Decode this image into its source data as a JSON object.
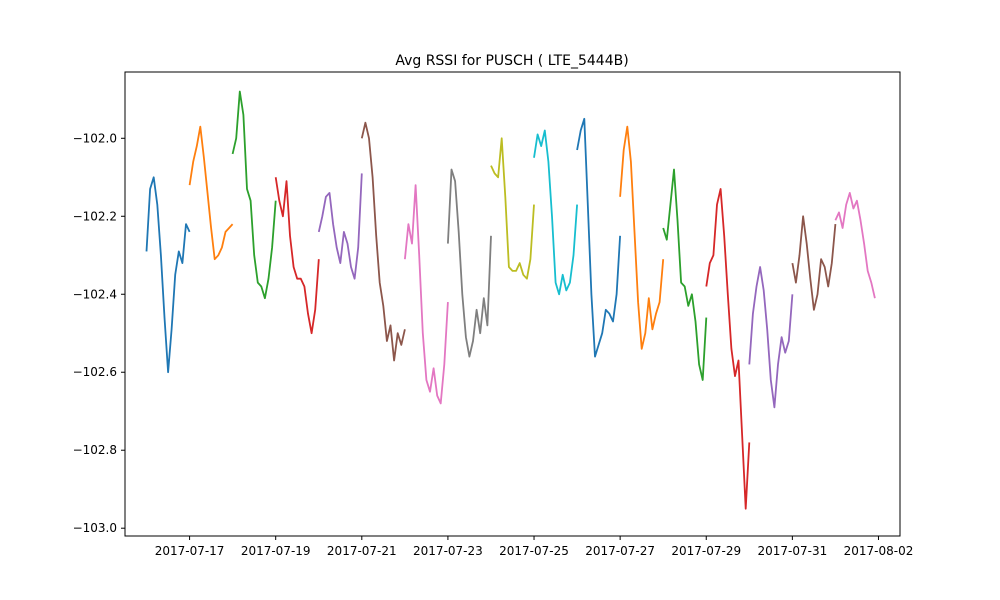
{
  "chart_data": {
    "type": "line",
    "title": "Avg RSSI for PUSCH ( LTE_5444B)",
    "xlabel": "",
    "ylabel": "",
    "x_axis": {
      "type": "date",
      "range": [
        "2017-07-15T12:00",
        "2017-08-02T12:00"
      ],
      "ticks": [
        "2017-07-17",
        "2017-07-19",
        "2017-07-21",
        "2017-07-23",
        "2017-07-25",
        "2017-07-27",
        "2017-07-29",
        "2017-07-31",
        "2017-08-02"
      ]
    },
    "y_axis": {
      "range": [
        -103.02,
        -101.83
      ],
      "ticks": [
        -103.0,
        -102.8,
        -102.6,
        -102.4,
        -102.2,
        -102.0
      ],
      "tick_labels": [
        "−103.0",
        "−102.8",
        "−102.6",
        "−102.4",
        "−102.2",
        "−102.0"
      ]
    },
    "grid": false,
    "legend": "none",
    "colors": [
      "#1f77b4",
      "#ff7f0e",
      "#2ca02c",
      "#d62728",
      "#9467bd",
      "#8c564b",
      "#e377c2",
      "#7f7f7f",
      "#bcbd22",
      "#17becf"
    ],
    "series": [
      {
        "x": [
          "2017-07-16T00:00",
          "2017-07-16T02:00",
          "2017-07-16T04:00",
          "2017-07-16T06:00",
          "2017-07-16T08:00",
          "2017-07-16T10:00",
          "2017-07-16T12:00",
          "2017-07-16T14:00",
          "2017-07-16T16:00",
          "2017-07-16T18:00",
          "2017-07-16T20:00",
          "2017-07-16T22:00",
          "2017-07-17T00:00"
        ],
        "y": [
          -102.29,
          -102.13,
          -102.1,
          -102.17,
          -102.3,
          -102.46,
          -102.6,
          -102.49,
          -102.35,
          -102.29,
          -102.32,
          -102.22,
          -102.24
        ]
      },
      {
        "x": [
          "2017-07-17T00:00",
          "2017-07-17T02:00",
          "2017-07-17T04:00",
          "2017-07-17T06:00",
          "2017-07-17T08:00",
          "2017-07-17T10:00",
          "2017-07-17T12:00",
          "2017-07-17T14:00",
          "2017-07-17T16:00",
          "2017-07-17T18:00",
          "2017-07-17T20:00",
          "2017-07-17T22:00",
          "2017-07-18T00:00"
        ],
        "y": [
          -102.12,
          -102.06,
          -102.02,
          -101.97,
          -102.05,
          -102.14,
          -102.23,
          -102.31,
          -102.3,
          -102.28,
          -102.24,
          -102.23,
          -102.22
        ]
      },
      {
        "x": [
          "2017-07-18T00:00",
          "2017-07-18T02:00",
          "2017-07-18T04:00",
          "2017-07-18T06:00",
          "2017-07-18T08:00",
          "2017-07-18T10:00",
          "2017-07-18T12:00",
          "2017-07-18T14:00",
          "2017-07-18T16:00",
          "2017-07-18T18:00",
          "2017-07-18T20:00",
          "2017-07-18T22:00",
          "2017-07-19T00:00"
        ],
        "y": [
          -102.04,
          -102.0,
          -101.88,
          -101.94,
          -102.13,
          -102.16,
          -102.3,
          -102.37,
          -102.38,
          -102.41,
          -102.36,
          -102.28,
          -102.16
        ]
      },
      {
        "x": [
          "2017-07-19T00:00",
          "2017-07-19T02:00",
          "2017-07-19T04:00",
          "2017-07-19T06:00",
          "2017-07-19T08:00",
          "2017-07-19T10:00",
          "2017-07-19T12:00",
          "2017-07-19T14:00",
          "2017-07-19T16:00",
          "2017-07-19T18:00",
          "2017-07-19T20:00",
          "2017-07-19T22:00",
          "2017-07-20T00:00"
        ],
        "y": [
          -102.1,
          -102.16,
          -102.2,
          -102.11,
          -102.25,
          -102.33,
          -102.36,
          -102.36,
          -102.38,
          -102.45,
          -102.5,
          -102.44,
          -102.31
        ]
      },
      {
        "x": [
          "2017-07-20T00:00",
          "2017-07-20T02:00",
          "2017-07-20T04:00",
          "2017-07-20T06:00",
          "2017-07-20T08:00",
          "2017-07-20T10:00",
          "2017-07-20T12:00",
          "2017-07-20T14:00",
          "2017-07-20T16:00",
          "2017-07-20T18:00",
          "2017-07-20T20:00",
          "2017-07-20T22:00",
          "2017-07-21T00:00"
        ],
        "y": [
          -102.24,
          -102.2,
          -102.15,
          -102.14,
          -102.22,
          -102.28,
          -102.32,
          -102.24,
          -102.27,
          -102.33,
          -102.36,
          -102.28,
          -102.09
        ]
      },
      {
        "x": [
          "2017-07-21T00:00",
          "2017-07-21T02:00",
          "2017-07-21T04:00",
          "2017-07-21T06:00",
          "2017-07-21T08:00",
          "2017-07-21T10:00",
          "2017-07-21T12:00",
          "2017-07-21T14:00",
          "2017-07-21T16:00",
          "2017-07-21T18:00",
          "2017-07-21T20:00",
          "2017-07-21T22:00",
          "2017-07-22T00:00"
        ],
        "y": [
          -102.0,
          -101.96,
          -102.0,
          -102.1,
          -102.25,
          -102.37,
          -102.43,
          -102.52,
          -102.48,
          -102.57,
          -102.5,
          -102.53,
          -102.49
        ]
      },
      {
        "x": [
          "2017-07-22T00:00",
          "2017-07-22T02:00",
          "2017-07-22T04:00",
          "2017-07-22T06:00",
          "2017-07-22T08:00",
          "2017-07-22T10:00",
          "2017-07-22T12:00",
          "2017-07-22T14:00",
          "2017-07-22T16:00",
          "2017-07-22T18:00",
          "2017-07-22T20:00",
          "2017-07-22T22:00",
          "2017-07-23T00:00"
        ],
        "y": [
          -102.31,
          -102.22,
          -102.27,
          -102.12,
          -102.3,
          -102.5,
          -102.62,
          -102.65,
          -102.59,
          -102.66,
          -102.68,
          -102.58,
          -102.42
        ]
      },
      {
        "x": [
          "2017-07-23T00:00",
          "2017-07-23T02:00",
          "2017-07-23T04:00",
          "2017-07-23T06:00",
          "2017-07-23T08:00",
          "2017-07-23T10:00",
          "2017-07-23T12:00",
          "2017-07-23T14:00",
          "2017-07-23T16:00",
          "2017-07-23T18:00",
          "2017-07-23T20:00",
          "2017-07-23T22:00",
          "2017-07-24T00:00"
        ],
        "y": [
          -102.27,
          -102.08,
          -102.11,
          -102.24,
          -102.4,
          -102.51,
          -102.56,
          -102.52,
          -102.44,
          -102.5,
          -102.41,
          -102.48,
          -102.25
        ]
      },
      {
        "x": [
          "2017-07-24T00:00",
          "2017-07-24T02:00",
          "2017-07-24T04:00",
          "2017-07-24T06:00",
          "2017-07-24T08:00",
          "2017-07-24T10:00",
          "2017-07-24T12:00",
          "2017-07-24T14:00",
          "2017-07-24T16:00",
          "2017-07-24T18:00",
          "2017-07-24T20:00",
          "2017-07-24T22:00",
          "2017-07-25T00:00"
        ],
        "y": [
          -102.07,
          -102.09,
          -102.1,
          -102.0,
          -102.15,
          -102.33,
          -102.34,
          -102.34,
          -102.32,
          -102.35,
          -102.36,
          -102.31,
          -102.17
        ]
      },
      {
        "x": [
          "2017-07-25T00:00",
          "2017-07-25T02:00",
          "2017-07-25T04:00",
          "2017-07-25T06:00",
          "2017-07-25T08:00",
          "2017-07-25T10:00",
          "2017-07-25T12:00",
          "2017-07-25T14:00",
          "2017-07-25T16:00",
          "2017-07-25T18:00",
          "2017-07-25T20:00",
          "2017-07-25T22:00",
          "2017-07-26T00:00"
        ],
        "y": [
          -102.05,
          -101.99,
          -102.02,
          -101.98,
          -102.06,
          -102.2,
          -102.37,
          -102.4,
          -102.35,
          -102.39,
          -102.37,
          -102.3,
          -102.17
        ]
      },
      {
        "x": [
          "2017-07-26T00:00",
          "2017-07-26T02:00",
          "2017-07-26T04:00",
          "2017-07-26T06:00",
          "2017-07-26T08:00",
          "2017-07-26T10:00",
          "2017-07-26T12:00",
          "2017-07-26T14:00",
          "2017-07-26T16:00",
          "2017-07-26T18:00",
          "2017-07-26T20:00",
          "2017-07-26T22:00",
          "2017-07-27T00:00"
        ],
        "y": [
          -102.03,
          -101.98,
          -101.95,
          -102.17,
          -102.4,
          -102.56,
          -102.53,
          -102.5,
          -102.44,
          -102.45,
          -102.47,
          -102.4,
          -102.25
        ]
      },
      {
        "x": [
          "2017-07-27T00:00",
          "2017-07-27T02:00",
          "2017-07-27T04:00",
          "2017-07-27T06:00",
          "2017-07-27T08:00",
          "2017-07-27T10:00",
          "2017-07-27T12:00",
          "2017-07-27T14:00",
          "2017-07-27T16:00",
          "2017-07-27T18:00",
          "2017-07-27T20:00",
          "2017-07-27T22:00",
          "2017-07-28T00:00"
        ],
        "y": [
          -102.15,
          -102.03,
          -101.97,
          -102.06,
          -102.24,
          -102.42,
          -102.54,
          -102.5,
          -102.41,
          -102.49,
          -102.45,
          -102.42,
          -102.31
        ]
      },
      {
        "x": [
          "2017-07-28T00:00",
          "2017-07-28T02:00",
          "2017-07-28T04:00",
          "2017-07-28T06:00",
          "2017-07-28T08:00",
          "2017-07-28T10:00",
          "2017-07-28T12:00",
          "2017-07-28T14:00",
          "2017-07-28T16:00",
          "2017-07-28T18:00",
          "2017-07-28T20:00",
          "2017-07-28T22:00",
          "2017-07-29T00:00"
        ],
        "y": [
          -102.23,
          -102.26,
          -102.17,
          -102.08,
          -102.21,
          -102.37,
          -102.38,
          -102.43,
          -102.4,
          -102.47,
          -102.58,
          -102.62,
          -102.46
        ]
      },
      {
        "x": [
          "2017-07-29T00:00",
          "2017-07-29T02:00",
          "2017-07-29T04:00",
          "2017-07-29T06:00",
          "2017-07-29T08:00",
          "2017-07-29T10:00",
          "2017-07-29T12:00",
          "2017-07-29T14:00",
          "2017-07-29T16:00",
          "2017-07-29T18:00",
          "2017-07-29T20:00",
          "2017-07-29T22:00",
          "2017-07-30T00:00"
        ],
        "y": [
          -102.38,
          -102.32,
          -102.3,
          -102.17,
          -102.13,
          -102.25,
          -102.4,
          -102.54,
          -102.61,
          -102.57,
          -102.76,
          -102.95,
          -102.78
        ]
      },
      {
        "x": [
          "2017-07-30T00:00",
          "2017-07-30T02:00",
          "2017-07-30T04:00",
          "2017-07-30T06:00",
          "2017-07-30T08:00",
          "2017-07-30T10:00",
          "2017-07-30T12:00",
          "2017-07-30T14:00",
          "2017-07-30T16:00",
          "2017-07-30T18:00",
          "2017-07-30T20:00",
          "2017-07-30T22:00",
          "2017-07-31T00:00"
        ],
        "y": [
          -102.58,
          -102.45,
          -102.38,
          -102.33,
          -102.39,
          -102.49,
          -102.62,
          -102.69,
          -102.58,
          -102.51,
          -102.55,
          -102.52,
          -102.4
        ]
      },
      {
        "x": [
          "2017-07-31T00:00",
          "2017-07-31T02:00",
          "2017-07-31T04:00",
          "2017-07-31T06:00",
          "2017-07-31T08:00",
          "2017-07-31T10:00",
          "2017-07-31T12:00",
          "2017-07-31T14:00",
          "2017-07-31T16:00",
          "2017-07-31T18:00",
          "2017-07-31T20:00",
          "2017-07-31T22:00",
          "2017-08-01T00:00"
        ],
        "y": [
          -102.32,
          -102.37,
          -102.3,
          -102.2,
          -102.27,
          -102.36,
          -102.44,
          -102.4,
          -102.31,
          -102.33,
          -102.38,
          -102.32,
          -102.22
        ]
      },
      {
        "x": [
          "2017-08-01T00:00",
          "2017-08-01T02:00",
          "2017-08-01T04:00",
          "2017-08-01T06:00",
          "2017-08-01T08:00",
          "2017-08-01T10:00",
          "2017-08-01T12:00",
          "2017-08-01T14:00",
          "2017-08-01T16:00",
          "2017-08-01T18:00",
          "2017-08-01T20:00",
          "2017-08-01T22:00"
        ],
        "y": [
          -102.21,
          -102.19,
          -102.23,
          -102.17,
          -102.14,
          -102.18,
          -102.16,
          -102.21,
          -102.27,
          -102.34,
          -102.37,
          -102.41
        ]
      }
    ]
  }
}
